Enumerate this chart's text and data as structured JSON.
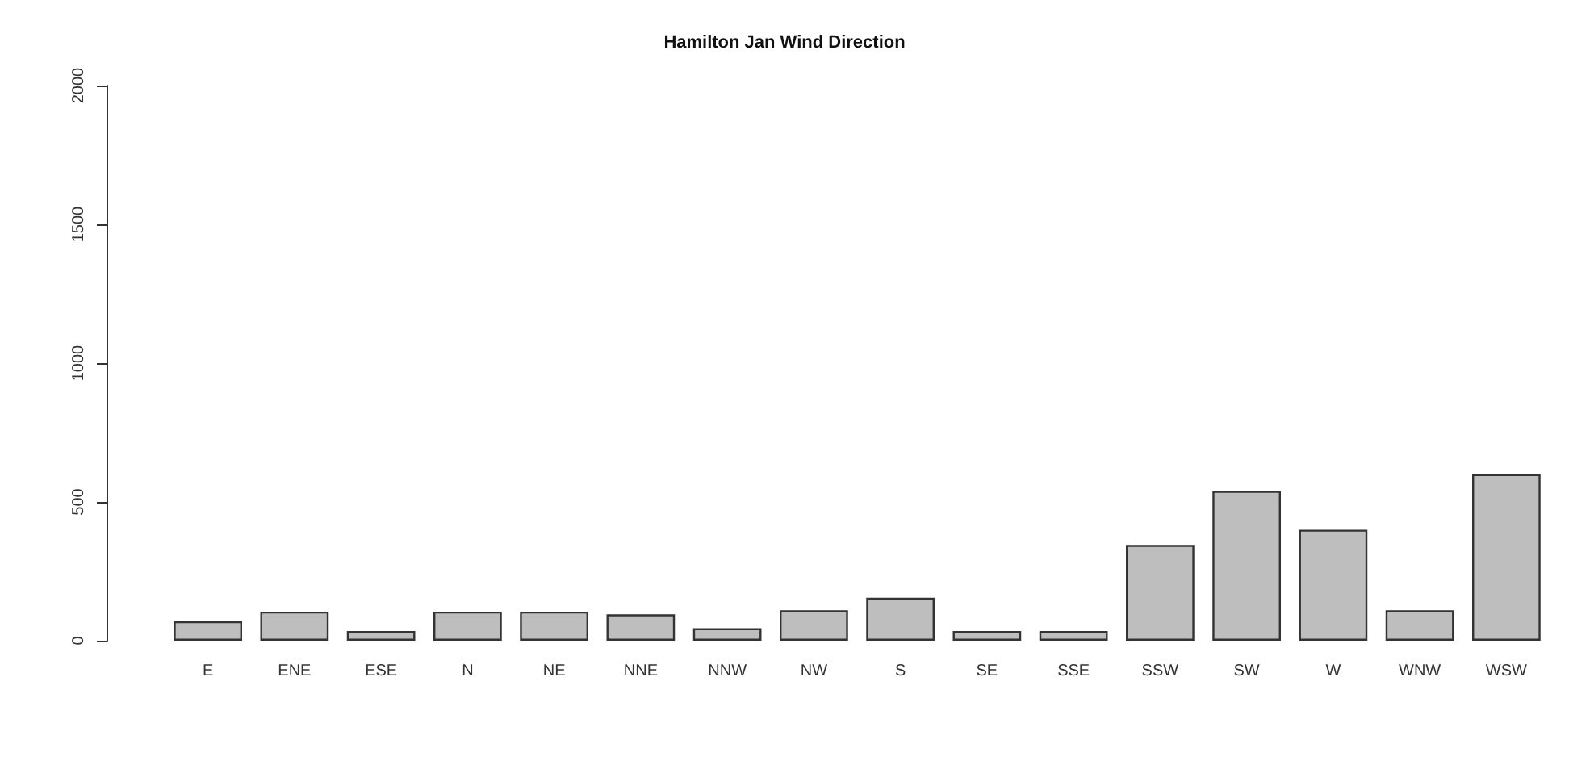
{
  "chart_data": {
    "type": "bar",
    "title": "Hamilton Jan Wind Direction",
    "categories": [
      "E",
      "ENE",
      "ESE",
      "N",
      "NE",
      "NNE",
      "NNW",
      "NW",
      "S",
      "SE",
      "SSE",
      "SSW",
      "SW",
      "W",
      "WNW",
      "WSW"
    ],
    "values": [
      70,
      105,
      35,
      105,
      105,
      95,
      45,
      110,
      155,
      35,
      35,
      345,
      540,
      400,
      110,
      600
    ],
    "color": "#bebebe",
    "ylim": [
      0,
      2000
    ],
    "yticks": [
      0,
      500,
      1000,
      1500,
      2000
    ],
    "grid": false
  }
}
